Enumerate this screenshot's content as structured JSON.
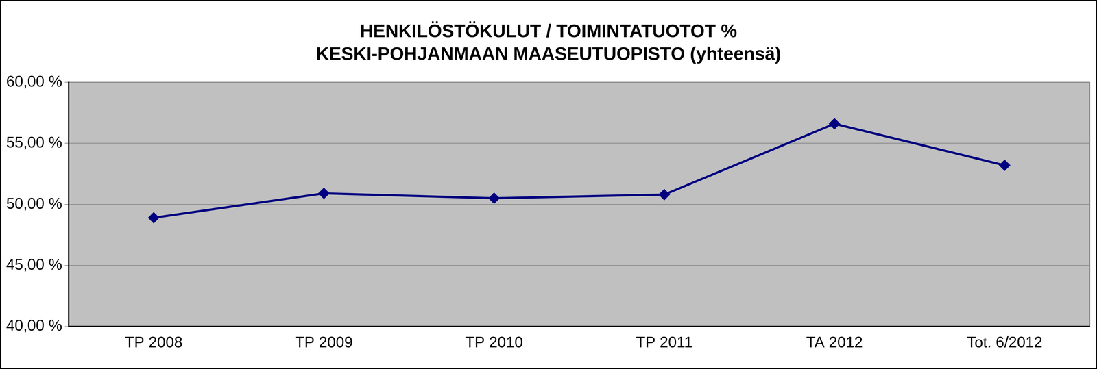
{
  "chart_data": {
    "type": "line",
    "title": [
      "HENKILÖSTÖKULUT / TOIMINTATUOTOT %",
      "KESKI-POHJANMAAN MAASEUTUOPISTO (yhteensä)"
    ],
    "categories": [
      "TP 2008",
      "TP 2009",
      "TP 2010",
      "TP 2011",
      "TA 2012",
      "Tot. 6/2012"
    ],
    "values": [
      48.9,
      50.9,
      50.5,
      50.8,
      56.6,
      53.2
    ],
    "color": "#000080",
    "marker": "diamond",
    "line_style": "solid",
    "ylim": [
      40,
      60
    ],
    "yticks": [
      {
        "value": 40,
        "label": "40,00 %"
      },
      {
        "value": 45,
        "label": "45,00 %"
      },
      {
        "value": 50,
        "label": "50,00 %"
      },
      {
        "value": 55,
        "label": "55,00 %"
      },
      {
        "value": 60,
        "label": "60,00 %"
      }
    ],
    "grid": true
  }
}
